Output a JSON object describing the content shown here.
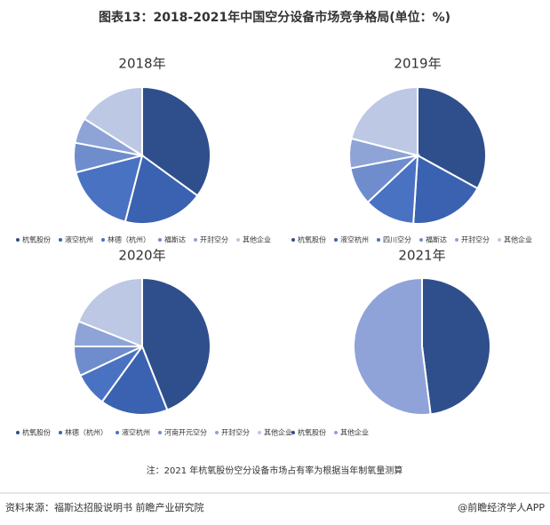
{
  "title": "图表13：2018-2021年中国空分设备市场竞争格局(单位：%)",
  "chart_data": [
    {
      "type": "pie",
      "title": "2018年",
      "categories": [
        "杭氧股份",
        "液空杭州",
        "林德（杭州）",
        "福斯达",
        "开封空分",
        "其他企业"
      ],
      "values": [
        35,
        19,
        17,
        7,
        6,
        16
      ],
      "colors": [
        "#2f4f8c",
        "#3a62b0",
        "#4a72c2",
        "#6f8dcc",
        "#8ea4d6",
        "#bcc8e4"
      ]
    },
    {
      "type": "pie",
      "title": "2019年",
      "categories": [
        "杭氧股份",
        "液空杭州",
        "四川空分",
        "福斯达",
        "开封空分",
        "其他企业"
      ],
      "values": [
        33,
        18,
        12,
        9,
        7,
        21
      ],
      "colors": [
        "#2f4f8c",
        "#3a62b0",
        "#4a72c2",
        "#6f8dcc",
        "#8ea4d6",
        "#bcc8e4"
      ]
    },
    {
      "type": "pie",
      "title": "2020年",
      "categories": [
        "杭氧股份",
        "林德（杭州）",
        "液空杭州",
        "河南开元空分",
        "开封空分",
        "其他企业"
      ],
      "values": [
        44,
        16,
        8,
        7,
        6,
        19
      ],
      "colors": [
        "#2f4f8c",
        "#3a62b0",
        "#4a72c2",
        "#6f8dcc",
        "#8ea4d6",
        "#bcc8e4"
      ]
    },
    {
      "type": "pie",
      "title": "2021年",
      "categories": [
        "杭氧股份",
        "其他企业"
      ],
      "values": [
        48,
        52
      ],
      "colors": [
        "#2f4f8c",
        "#8fa3d9"
      ]
    }
  ],
  "note": "注：2021 年杭氧股份空分设备市场占有率为根据当年制氧量测算",
  "source": "资料来源：福斯达招股说明书 前瞻产业研究院",
  "brand": "@前瞻经济学人APP"
}
